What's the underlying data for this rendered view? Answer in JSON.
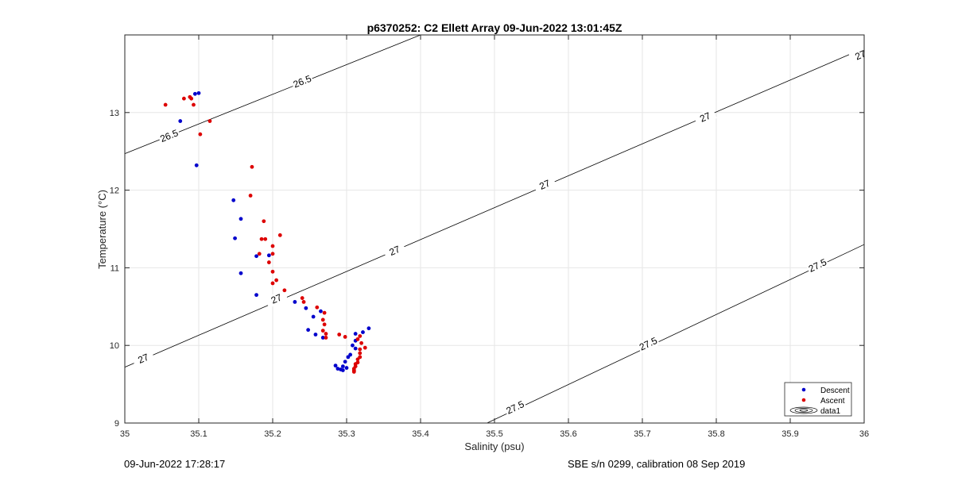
{
  "chart_data": {
    "type": "scatter",
    "title": "p6370252: C2 Ellett Array 09-Jun-2022 13:01:45Z",
    "xlabel": "Salinity (psu)",
    "ylabel": "Temperature (°C)",
    "xlim": [
      35,
      36
    ],
    "ylim": [
      9,
      14
    ],
    "xticks": [
      "35",
      "35.1",
      "35.2",
      "35.3",
      "35.4",
      "35.5",
      "35.6",
      "35.7",
      "35.8",
      "35.9",
      "36"
    ],
    "yticks": [
      "9",
      "10",
      "11",
      "12",
      "13"
    ],
    "grid": true,
    "legend_position": "bottom-right",
    "colors": {
      "descent": "#0000cc",
      "ascent": "#dd0000",
      "contour": "#000000",
      "grid": "#e6e6e6"
    },
    "series": [
      {
        "name": "Descent",
        "x": [
          35.095,
          35.1,
          35.075,
          35.097,
          35.147,
          35.157,
          35.149,
          35.157,
          35.178,
          35.195,
          35.178,
          35.23,
          35.245,
          35.255,
          35.265,
          35.248,
          35.258,
          35.268,
          35.33,
          35.322,
          35.312,
          35.312,
          35.308,
          35.312,
          35.305,
          35.302,
          35.298,
          35.295,
          35.3,
          35.292,
          35.288,
          35.295,
          35.285
        ],
        "y": [
          13.24,
          13.25,
          12.89,
          12.32,
          11.87,
          11.63,
          11.38,
          10.93,
          11.15,
          11.16,
          10.65,
          10.56,
          10.48,
          10.37,
          10.44,
          10.2,
          10.14,
          10.1,
          10.22,
          10.17,
          10.15,
          10.06,
          10.0,
          9.96,
          9.88,
          9.85,
          9.79,
          9.73,
          9.71,
          9.69,
          9.7,
          9.68,
          9.74
        ]
      },
      {
        "name": "Ascent",
        "x": [
          35.055,
          35.08,
          35.088,
          35.09,
          35.093,
          35.115,
          35.102,
          35.172,
          35.17,
          35.188,
          35.185,
          35.19,
          35.21,
          35.182,
          35.195,
          35.2,
          35.2,
          35.2,
          35.205,
          35.2,
          35.216,
          35.24,
          35.242,
          35.26,
          35.27,
          35.268,
          35.27,
          35.268,
          35.272,
          35.272,
          35.29,
          35.298,
          35.318,
          35.315,
          35.32,
          35.325,
          35.318,
          35.318,
          35.318,
          35.315,
          35.315,
          35.312,
          35.312,
          35.31,
          35.31,
          35.31,
          35.31
        ],
        "y": [
          13.1,
          13.18,
          13.2,
          13.18,
          13.1,
          12.89,
          12.72,
          12.3,
          11.93,
          11.6,
          11.37,
          11.37,
          11.42,
          11.18,
          11.07,
          11.28,
          11.18,
          10.95,
          10.84,
          10.8,
          10.71,
          10.61,
          10.56,
          10.49,
          10.42,
          10.33,
          10.27,
          10.19,
          10.15,
          10.1,
          10.14,
          10.11,
          10.12,
          10.08,
          10.03,
          9.97,
          9.95,
          9.9,
          9.85,
          9.82,
          9.78,
          9.76,
          9.73,
          9.7,
          9.68,
          9.66,
          9.67
        ]
      }
    ],
    "contours": [
      {
        "label": "26.5",
        "x": [
          35,
          35.4
        ],
        "y": [
          12.47,
          14.0
        ],
        "label_positions": [
          [
            35.06,
            12.7
          ],
          [
            35.24,
            13.4
          ]
        ]
      },
      {
        "label": "27",
        "x": [
          35,
          36
        ],
        "y": [
          9.72,
          13.83
        ],
        "label_positions": [
          [
            35.025,
            9.83
          ],
          [
            35.205,
            10.6
          ],
          [
            35.365,
            11.22
          ],
          [
            35.568,
            12.07
          ],
          [
            35.785,
            12.94
          ],
          [
            35.995,
            13.74
          ]
        ]
      },
      {
        "label": "27.5",
        "x": [
          35.49,
          36
        ],
        "y": [
          9.0,
          11.3
        ],
        "label_positions": [
          [
            35.528,
            9.2
          ],
          [
            35.708,
            10.02
          ],
          [
            35.937,
            11.03
          ]
        ]
      }
    ],
    "legend_entries": [
      "Descent",
      "Ascent",
      "data1"
    ]
  },
  "footer": {
    "left": "09-Jun-2022 17:28:17",
    "right": "SBE s/n 0299, calibration 08 Sep 2019"
  }
}
